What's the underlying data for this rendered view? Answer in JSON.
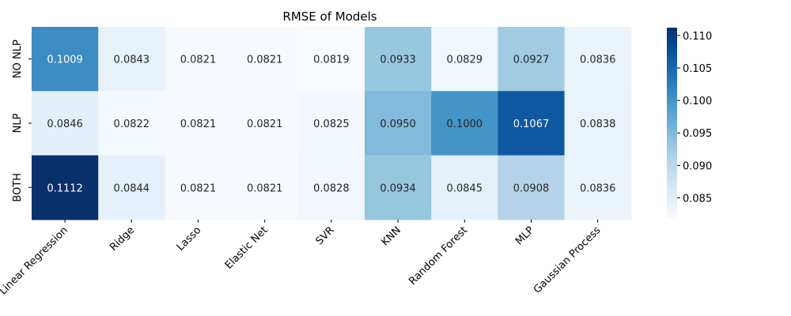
{
  "chart_data": {
    "type": "heatmap",
    "title": "RMSE of Models",
    "xlabel": "",
    "ylabel": "",
    "x_categories": [
      "Linear Regression",
      "Ridge",
      "Lasso",
      "Elastic Net",
      "SVR",
      "KNN",
      "Random Forest",
      "MLP",
      "Gaussian Process"
    ],
    "y_categories": [
      "NO NLP",
      "NLP",
      "BOTH"
    ],
    "values": [
      [
        0.1009,
        0.0843,
        0.0821,
        0.0821,
        0.0819,
        0.0933,
        0.0829,
        0.0927,
        0.0836
      ],
      [
        0.0846,
        0.0822,
        0.0821,
        0.0821,
        0.0825,
        0.095,
        0.1,
        0.1067,
        0.0838
      ],
      [
        0.1112,
        0.0844,
        0.0821,
        0.0821,
        0.0828,
        0.0934,
        0.0845,
        0.0908,
        0.0836
      ]
    ],
    "value_labels": [
      [
        "0.1009",
        "0.0843",
        "0.0821",
        "0.0821",
        "0.0819",
        "0.0933",
        "0.0829",
        "0.0927",
        "0.0836"
      ],
      [
        "0.0846",
        "0.0822",
        "0.0821",
        "0.0821",
        "0.0825",
        "0.0950",
        "0.1000",
        "0.1067",
        "0.0838"
      ],
      [
        "0.1112",
        "0.0844",
        "0.0821",
        "0.0821",
        "0.0828",
        "0.0934",
        "0.0845",
        "0.0908",
        "0.0836"
      ]
    ],
    "colormap": "Blues",
    "colorbar": {
      "range": [
        0.0819,
        0.1112
      ],
      "ticks": [
        0.085,
        0.09,
        0.095,
        0.1,
        0.105,
        0.11
      ],
      "tick_labels": [
        "0.085",
        "0.090",
        "0.095",
        "0.100",
        "0.105",
        "0.110"
      ]
    },
    "grid": false,
    "legend": "colorbar-right"
  }
}
